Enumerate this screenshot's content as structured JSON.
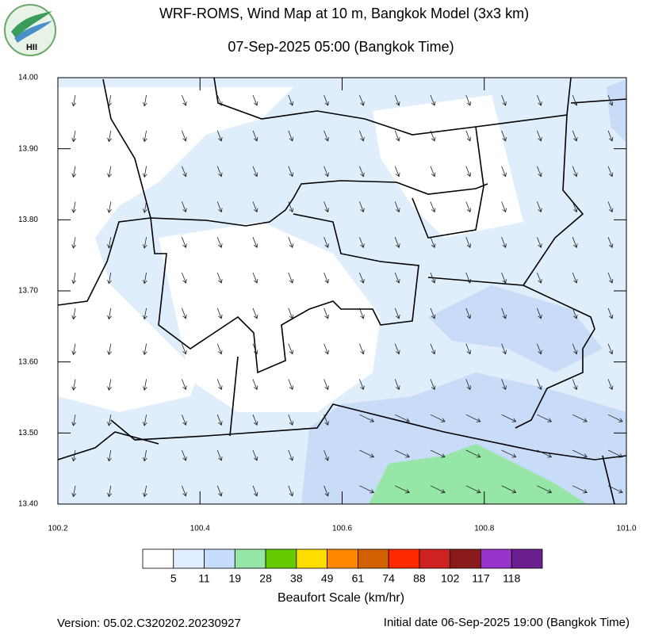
{
  "header": {
    "title": "WRF-ROMS, Wind Map at 10 m, Bangkok Model (3x3 km)",
    "subtitle": "07-Sep-2025 05:00 (Bangkok Time)",
    "logo": "HII"
  },
  "map": {
    "xlim": [
      100.2,
      101.0
    ],
    "ylim": [
      13.4,
      14.0
    ],
    "xticks": [
      100.2,
      100.4,
      100.6,
      100.8,
      {
        "value": 101.0,
        "label": "101.0"
      }
    ],
    "yticks": [
      {
        "value": 13.4,
        "label": "13.40"
      },
      {
        "value": 13.5,
        "label": "13.50"
      },
      {
        "value": 13.6,
        "label": "13.60"
      },
      {
        "value": 13.7,
        "label": "13.70"
      },
      {
        "value": 13.8,
        "label": "13.80"
      },
      {
        "value": 13.9,
        "label": "13.90"
      },
      {
        "value": 14.0,
        "label": "14.00"
      }
    ]
  },
  "legend": {
    "title": "Beaufort Scale (km/hr)",
    "colors": [
      "#ffffff",
      "#e0eeff",
      "#c6dcfb",
      "#96e6a8",
      "#66cc00",
      "#ffdd00",
      "#ff8800",
      "#d06000",
      "#ff2a00",
      "#cc2222",
      "#8b1a1a",
      "#9933cc",
      "#6b1f8f"
    ],
    "bounds": [
      5,
      11,
      19,
      28,
      38,
      49,
      61,
      74,
      88,
      102,
      117,
      118
    ]
  },
  "footer": {
    "version": "Version: 05.02.C320202.20230927",
    "init": "Initial date 06-Sep-2025 19:00 (Bangkok Time)"
  }
}
